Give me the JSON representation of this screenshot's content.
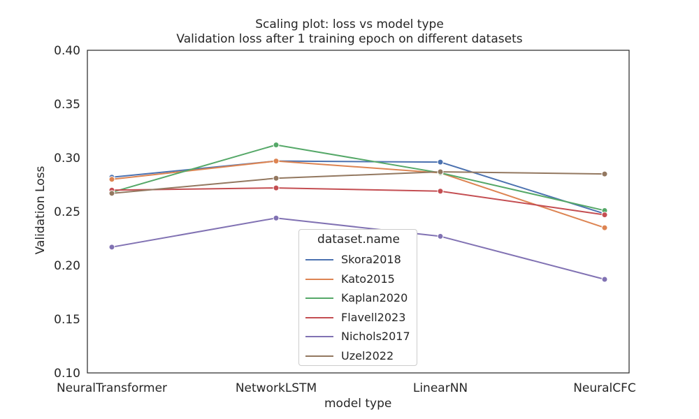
{
  "chart_data": {
    "type": "line",
    "title": "Scaling plot: loss vs model type",
    "subtitle": "Validation loss after 1 training epoch on different datasets",
    "xlabel": "model type",
    "ylabel": "Validation Loss",
    "categories": [
      "NeuralTransformer",
      "NetworkLSTM",
      "LinearNN",
      "NeuralCFC"
    ],
    "ylim": [
      0.1,
      0.4
    ],
    "yticks": [
      "0.10",
      "0.15",
      "0.20",
      "0.25",
      "0.30",
      "0.35",
      "0.40"
    ],
    "grid": false,
    "legend": {
      "title": "dataset.name",
      "placement": "lower-center"
    },
    "series": [
      {
        "name": "Skora2018",
        "color": "#4c72b0",
        "values": [
          0.282,
          0.297,
          0.296,
          0.248
        ]
      },
      {
        "name": "Kato2015",
        "color": "#dd8452",
        "values": [
          0.28,
          0.297,
          0.286,
          0.235
        ]
      },
      {
        "name": "Kaplan2020",
        "color": "#55a868",
        "values": [
          0.268,
          0.312,
          0.286,
          0.251
        ]
      },
      {
        "name": "Flavell2023",
        "color": "#c44e52",
        "values": [
          0.27,
          0.272,
          0.269,
          0.247
        ]
      },
      {
        "name": "Nichols2017",
        "color": "#8172b3",
        "values": [
          0.217,
          0.244,
          0.227,
          0.187
        ]
      },
      {
        "name": "Uzel2022",
        "color": "#937860",
        "values": [
          0.267,
          0.281,
          0.287,
          0.285
        ]
      }
    ]
  }
}
